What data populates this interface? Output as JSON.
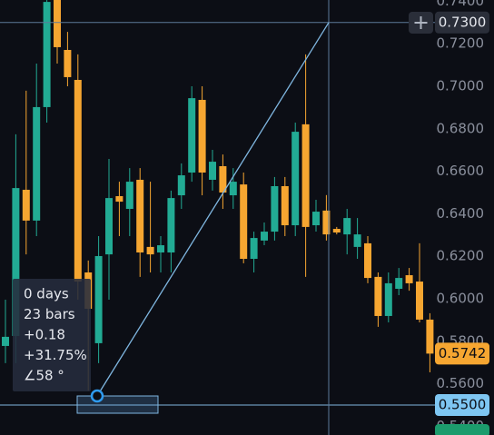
{
  "chart_data": {
    "type": "candlestick",
    "open": [
      0.5778,
      0.5825,
      0.6513,
      0.6368,
      0.6902,
      0.7406,
      0.7171,
      0.703,
      0.6124,
      0.5791,
      0.6209,
      0.6483,
      0.6423,
      0.656,
      0.6244,
      0.6218,
      0.6218,
      0.6487,
      0.6594,
      0.6936,
      0.656,
      0.6624,
      0.6487,
      0.6538,
      0.6188,
      0.6274,
      0.6316,
      0.653,
      0.6346,
      0.6821,
      0.6346,
      0.6415,
      0.6329,
      0.6303,
      0.6244,
      0.6261,
      0.6103,
      0.5919,
      0.6047,
      0.6111,
      0.6081,
      0.5902
    ],
    "high": [
      0.5996,
      0.6774,
      0.6979,
      0.7107,
      0.7406,
      0.7406,
      0.7256,
      0.715,
      0.618,
      0.6295,
      0.6658,
      0.6551,
      0.6615,
      0.6615,
      0.6551,
      0.6295,
      0.6509,
      0.6637,
      0.7,
      0.7,
      0.6701,
      0.6679,
      0.6615,
      0.6594,
      0.6316,
      0.6359,
      0.6573,
      0.6573,
      0.6829,
      0.715,
      0.6466,
      0.6488,
      0.6338,
      0.6423,
      0.638,
      0.6295,
      0.6124,
      0.6124,
      0.6145,
      0.6145,
      0.6261,
      0.5932
    ],
    "low": [
      0.5697,
      0.5697,
      0.6209,
      0.6295,
      0.6829,
      0.7107,
      0.7,
      0.5996,
      0.5568,
      0.5697,
      0.5996,
      0.6295,
      0.6295,
      0.6103,
      0.6124,
      0.6124,
      0.6124,
      0.6423,
      0.6551,
      0.6487,
      0.6509,
      0.6423,
      0.6423,
      0.6167,
      0.6124,
      0.6252,
      0.6274,
      0.6295,
      0.6295,
      0.6103,
      0.6316,
      0.6274,
      0.6303,
      0.6209,
      0.6188,
      0.6073,
      0.5868,
      0.5889,
      0.6017,
      0.6038,
      0.5889,
      0.5654
    ],
    "close": [
      0.5821,
      0.6521,
      0.6368,
      0.6902,
      0.7397,
      0.7184,
      0.7043,
      0.6081,
      0.5953,
      0.6201,
      0.6474,
      0.6457,
      0.6551,
      0.6218,
      0.6209,
      0.6252,
      0.6474,
      0.6581,
      0.6944,
      0.6594,
      0.6645,
      0.65,
      0.6551,
      0.6188,
      0.6286,
      0.6316,
      0.653,
      0.6346,
      0.6786,
      0.6338,
      0.641,
      0.6303,
      0.6312,
      0.638,
      0.6303,
      0.6098,
      0.5919,
      0.6073,
      0.6098,
      0.6073,
      0.5902,
      0.5742
    ],
    "up_color": "#22ab94",
    "down_color": "#f6a631",
    "ylim": [
      0.5359,
      0.7406
    ],
    "yticks": [
      {
        "value": 0.74,
        "label": "0.7400"
      },
      {
        "value": 0.72,
        "label": "0.7200"
      },
      {
        "value": 0.7,
        "label": "0.7000"
      },
      {
        "value": 0.68,
        "label": "0.6800"
      },
      {
        "value": 0.66,
        "label": "0.6600"
      },
      {
        "value": 0.64,
        "label": "0.6400"
      },
      {
        "value": 0.62,
        "label": "0.6200"
      },
      {
        "value": 0.6,
        "label": "0.6000"
      },
      {
        "value": 0.58,
        "label": "0.5800"
      },
      {
        "value": 0.56,
        "label": "0.5600"
      },
      {
        "value": 0.54,
        "label": "0.5400"
      }
    ],
    "price_lines": [
      {
        "value": 0.73,
        "label": "0.7300"
      },
      {
        "value": 0.55,
        "label": "0.5500"
      }
    ],
    "last_price": {
      "value": 0.5742,
      "label": "0.5742"
    },
    "measure": [
      "0 days",
      "23 bars",
      "+0.18",
      "+31.75%",
      "∠58 °"
    ]
  }
}
